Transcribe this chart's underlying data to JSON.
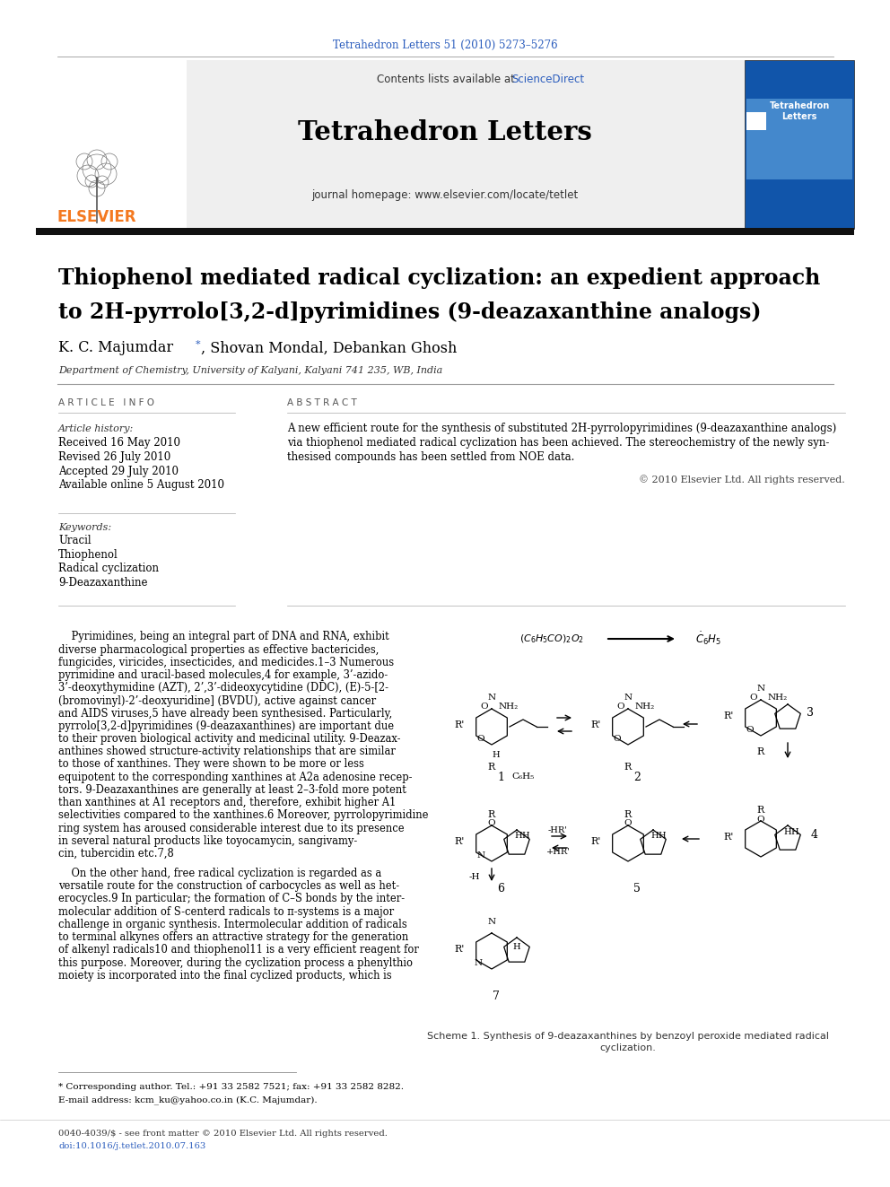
{
  "page_title_line": "Tetrahedron Letters 51 (2010) 5273–5276",
  "journal_name": "Tetrahedron Letters",
  "contents_text": "Contents lists available at ",
  "sciencedirect": "ScienceDirect",
  "journal_homepage": "journal homepage: www.elsevier.com/locate/tetlet",
  "article_title_line1": "Thiophenol mediated radical cyclization: an expedient approach",
  "article_title_line2": "to 2H-pyrrolo[3,2-d]pyrimidines (9-deazaxanthine analogs)",
  "authors_part1": "K. C. Majumdar",
  "authors_part2": ", Shovan Mondal, Debankan Ghosh",
  "affiliation": "Department of Chemistry, University of Kalyani, Kalyani 741 235, WB, India",
  "article_info_header": "A R T I C L E   I N F O",
  "abstract_header": "A B S T R A C T",
  "article_history_label": "Article history:",
  "received": "Received 16 May 2010",
  "revised": "Revised 26 July 2010",
  "accepted": "Accepted 29 July 2010",
  "available": "Available online 5 August 2010",
  "keywords_label": "Keywords:",
  "keywords": [
    "Uracil",
    "Thiophenol",
    "Radical cyclization",
    "9-Deazaxanthine"
  ],
  "abstract_lines": [
    "A new efficient route for the synthesis of substituted 2H-pyrrolopyrimidines (9-deazaxanthine analogs)",
    "via thiophenol mediated radical cyclization has been achieved. The stereochemistry of the newly syn-",
    "thesised compounds has been settled from NOE data."
  ],
  "copyright": "© 2010 Elsevier Ltd. All rights reserved.",
  "body_left_lines": [
    "    Pyrimidines, being an integral part of DNA and RNA, exhibit",
    "diverse pharmacological properties as effective bactericides,",
    "fungicides, viricides, insecticides, and medicides.1–3 Numerous",
    "pyrimidine and uracil-based molecules,4 for example, 3’-azido-",
    "3’-deoxythymidine (AZT), 2’,3’-dideoxycytidine (DDC), (E)-5-[2-",
    "(bromovinyl)-2’-deoxyuridine] (BVDU), active against cancer",
    "and AIDS viruses,5 have already been synthesised. Particularly,",
    "pyrrolo[3,2-d]pyrimidines (9-deazaxanthines) are important due",
    "to their proven biological activity and medicinal utility. 9-Deazax-",
    "anthines showed structure-activity relationships that are similar",
    "to those of xanthines. They were shown to be more or less",
    "equipotent to the corresponding xanthines at A2a adenosine recep-",
    "tors. 9-Deazaxanthines are generally at least 2–3-fold more potent",
    "than xanthines at A1 receptors and, therefore, exhibit higher A1",
    "selectivities compared to the xanthines.6 Moreover, pyrrolopyrimidine",
    "ring system has aroused considerable interest due to its presence",
    "in several natural products like toyocamycin, sangivamy-",
    "cin, tubercidin etc.7,8"
  ],
  "body_left_lines2": [
    "    On the other hand, free radical cyclization is regarded as a",
    "versatile route for the construction of carbocycles as well as het-",
    "erocycles.9 In particular; the formation of C–S bonds by the inter-",
    "molecular addition of S-centerd radicals to π-systems is a major",
    "challenge in organic synthesis. Intermolecular addition of radicals",
    "to terminal alkynes offers an attractive strategy for the generation",
    "of alkenyl radicals10 and thiophenol11 is a very efficient reagent for",
    "this purpose. Moreover, during the cyclization process a phenylthio",
    "moiety is incorporated into the final cyclized products, which is"
  ],
  "scheme_caption1": "Scheme 1. Synthesis of 9-deazaxanthines by benzoyl peroxide mediated radical",
  "scheme_caption2": "cyclization.",
  "footnote_star": "* Corresponding author. Tel.: +91 33 2582 7521; fax: +91 33 2582 8282.",
  "footnote_email": "E-mail address: kcm_ku@yahoo.co.in (K.C. Majumdar).",
  "footer_issn": "0040-4039/$ - see front matter © 2010 Elsevier Ltd. All rights reserved.",
  "footer_doi": "doi:10.1016/j.tetlet.2010.07.163",
  "bg_color": "#ffffff",
  "header_bg": "#efefef",
  "link_color": "#2b5dbd",
  "elsevier_orange": "#f47920",
  "body_text_color": "#000000"
}
